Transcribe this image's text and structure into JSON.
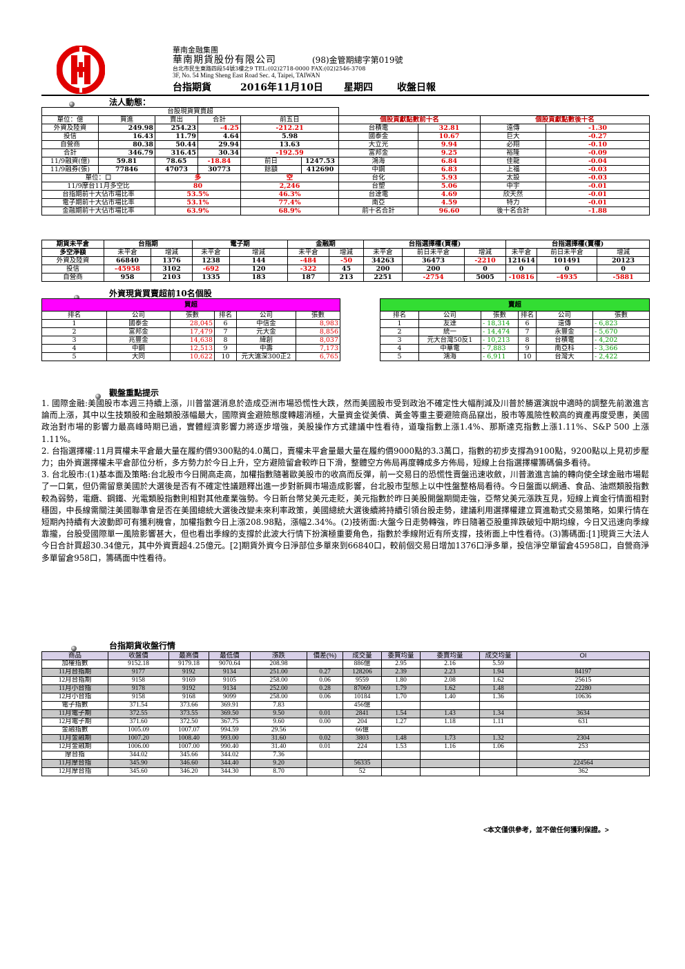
{
  "header": {
    "group": "華南金融集團",
    "company": "華南期貨股份有限公司",
    "license": "(98)金管期總字第019號",
    "address_cn": "台北市民生東路四段54號3樓之9 TEL:(02)2718-0000 FAX:(02)2546-3708",
    "address_en": "3F, No. 54 Ming Sheng East Road Sec. 4, Taipei, TAIWAN",
    "product": "台指期貨",
    "date": "2016年11月10日",
    "weekday": "星期四",
    "report": "收盤日報",
    "logo_color": "#e00000"
  },
  "section1": {
    "title": "法人動態："
  },
  "inst": {
    "caption": "台股現貨買賣超",
    "head": [
      "單位：億",
      "買進",
      "賣出",
      "合計",
      "前五日"
    ],
    "rows": [
      [
        "外資及陸資",
        "249.98",
        "254.23",
        "-4.25",
        "-212.21"
      ],
      [
        "投信",
        "16.43",
        "11.79",
        "4.64",
        "5.98"
      ],
      [
        "自營商",
        "80.38",
        "50.44",
        "29.94",
        "13.63"
      ],
      [
        "合計",
        "346.79",
        "316.45",
        "30.34",
        "-192.59"
      ]
    ],
    "margin_rows": [
      [
        "11/9融資(億)",
        "59.81",
        "78.65",
        "-18.84",
        "前日",
        "1247.53"
      ],
      [
        "11/9融券(張)",
        "77846",
        "47073",
        "30773",
        "餘額",
        "412690"
      ]
    ],
    "unit_row": [
      "單位：口",
      "多",
      "空"
    ],
    "stat_rows": [
      [
        "11/9摩台11月多空比",
        "80",
        "2,246"
      ],
      [
        "台指期前十大佔市場比率",
        "53.5%",
        "46.3%"
      ],
      [
        "電子期前十大佔市場比率",
        "53.1%",
        "77.4%"
      ],
      [
        "金融期前十大佔市場比率",
        "63.9%",
        "68.9%"
      ]
    ]
  },
  "contrib": {
    "top_title": "個股貢獻點數前十名",
    "bottom_title": "個股貢獻點數後十名",
    "rows": [
      [
        "台積電",
        "32.81",
        "遠傳",
        "-1.30"
      ],
      [
        "國泰金",
        "10.67",
        "巨大",
        "-0.27"
      ],
      [
        "大立光",
        "9.94",
        "必翔",
        "-0.10"
      ],
      [
        "富邦金",
        "9.25",
        "裕隆",
        "-0.09"
      ],
      [
        "鴻海",
        "6.84",
        "佳龍",
        "-0.04"
      ],
      [
        "中鋼",
        "6.83",
        "上福",
        "-0.03"
      ],
      [
        "台化",
        "5.93",
        "太設",
        "-0.03"
      ],
      [
        "台塑",
        "5.06",
        "中宇",
        "-0.01"
      ],
      [
        "台達電",
        "4.69",
        "欣天然",
        "-0.01"
      ],
      [
        "南亞",
        "4.59",
        "特力",
        "-0.01"
      ]
    ],
    "sum_row": [
      "前十名合計",
      "96.60",
      "後十名合計",
      "-1.88"
    ]
  },
  "oi": {
    "groups": [
      "期貨未平倉",
      "台指期",
      "電子期",
      "金融期",
      "台指選擇權(買權)",
      "台指選擇權(賣權)"
    ],
    "sub": [
      "多空淨額",
      "未平倉",
      "增減",
      "未平倉",
      "增減",
      "未平倉",
      "增減",
      "未平倉",
      "前日未平倉",
      "增減",
      "未平倉",
      "前日未平倉",
      "增減"
    ],
    "rows": [
      [
        "外資及陸資",
        "66840",
        "1376",
        "1238",
        "144",
        "-484",
        "-50",
        "34263",
        "36473",
        "-2210",
        "121614",
        "101491",
        "20123"
      ],
      [
        "投信",
        "-45958",
        "3102",
        "-692",
        "120",
        "-322",
        "45",
        "200",
        "200",
        "0",
        "0",
        "0",
        "0"
      ],
      [
        "自營商",
        "958",
        "2103",
        "1335",
        "183",
        "187",
        "213",
        "2251",
        "-2754",
        "5005",
        "-10816",
        "-4935",
        "-5881"
      ]
    ]
  },
  "section2": {
    "title": "外資現貨買賣超前10名個股"
  },
  "buy": {
    "title": "買超",
    "head": [
      "排名",
      "公司",
      "張數",
      "排名",
      "公司",
      "張數"
    ],
    "rows": [
      [
        "1",
        "國泰金",
        "28,045",
        "6",
        "中信金",
        "8,983"
      ],
      [
        "2",
        "富邦金",
        "17,479",
        "7",
        "元大金",
        "8,856"
      ],
      [
        "3",
        "兆豐金",
        "14,638",
        "8",
        "緯創",
        "8,037"
      ],
      [
        "4",
        "中鋼",
        "12,513",
        "9",
        "中壽",
        "7,173"
      ],
      [
        "5",
        "大同",
        "10,622",
        "10",
        "元大滬深300正2",
        "6,765"
      ]
    ]
  },
  "sell": {
    "title": "賣超",
    "head": [
      "排名",
      "公司",
      "張數",
      "排名",
      "公司",
      "張數"
    ],
    "rows": [
      [
        "1",
        "友達",
        "- 18,314",
        "6",
        "遠傳",
        "- 6,823"
      ],
      [
        "2",
        "統一",
        "- 14,474",
        "7",
        "永豐金",
        "- 5,670"
      ],
      [
        "3",
        "元大台灣50反1",
        "- 10,213",
        "8",
        "台積電",
        "- 4,202"
      ],
      [
        "4",
        "中華電",
        "- 7,883",
        "9",
        "南亞科",
        "- 3,366"
      ],
      [
        "5",
        "鴻海",
        "- 6,911",
        "10",
        "台灣大",
        "- 2,422"
      ]
    ]
  },
  "section3": {
    "title": "觀盤重點提示"
  },
  "points": [
    "1. 國際金融:美國股市本週三持續上漲，川普當選消息於造成亞洲市場恐慌性大跌，然而美國股市受到政治不確定性大幅削減及川普於勝選演說中適時的調整先前激進言論而上漲，其中以生技類股和金融類股漲幅最大，國際資金避險態度轉趨消極，大量資金從美債、黃金等重主要避險商品竄出，股市等風險性較高的資產再度受惠，美國政治對市場的影響力最高峰時期已過，實體經濟影響力將逐步增強，美股操作方式建議中性看待，道瓊指數上漲1.4%、那斯達克指數上漲1.11%、S&P 500 上漲1.11%。",
    "2. 台指選擇權:11月買權未平倉最大量在履約價9300點的4.0萬口，賣權未平倉量最大量在履約價9000點的3.3萬口，指數的初步支撐為9100點，9200點以上見初步壓力；由外資選擇權未平倉部位分析，多方勢力於今日上升，空方避險留倉較昨日下滑，整體空方佈局再度轉成多方佈局，短線上台指選擇權籌碼偏多看待。",
    "3. 台北股市:(1)基本面及策略:台北股市今日開高走高，加權指數隨著歐美股市的收高而反彈，前一交易日的恐慌性賣盤迅速收斂，川普激進言論的轉向使全球金融市場鬆了一口氣，但仍需留意美國於大選後是否有不確定性議題釋出進一步對新興市場造成影響，台北股市型態上以中性盤整格局看待。今日盤面以網通、食品、油燃類股指數較為弱勢，電纜、鋼鐵、光電類股指數則相對其他產業強勢。今日新台幣兌美元走貶，美元指數於昨日美股開盤期間走強，亞幣兌美元漲跌互見，短線上資金行情面相對穩固，中長線需關注美國聯準會是否在美國總統大選後改變未來利率政策，美國總統大選後續將持續引領台股走勢，建議利用選擇權建立買進勒式交易策略，如果行情在短期內持續有大波動即可有獲利機會，加權指數今日上漲208.98點，漲幅2.34%。(2)技術面:大盤今日走勢轉強，昨日隨著亞股重摔跌破短中期均線，今日又迅速向季線靠攏，台股受國際單一風險影響甚大，但也看出季線的支撐於此波大行情下扮演極重要角色，指數於季線附近有所支撐，技術面上中性看待。(3)籌碼面:[1]現貨三大法人今日合計買超30.34億元，其中外資賣超4.25億元。[2]期貨外資今日淨部位多單來到66840口，較前個交易日增加1376口淨多單，投信淨空單留倉45958口，自營商淨多單留倉958口，籌碼面中性看待。"
  ],
  "section4": {
    "title": "台指期貨收盤行情"
  },
  "futures": {
    "head": [
      "商品",
      "收盤價",
      "最高價",
      "最低價",
      "漲跌",
      "價差(%)",
      "成交量",
      "委買均量",
      "委賣均量",
      "成交均量",
      "OI"
    ],
    "rows": [
      [
        "加權指數",
        "9152.18",
        "9179.18",
        "9070.64",
        "208.98",
        "",
        "886億",
        "2.95",
        "2.16",
        "5.59",
        ""
      ],
      [
        "11月台指期",
        "9177",
        "9192",
        "9134",
        "251.00",
        "0.27",
        "128206",
        "2.39",
        "2.23",
        "1.94",
        "84197"
      ],
      [
        "12月台指期",
        "9158",
        "9169",
        "9105",
        "258.00",
        "0.06",
        "9559",
        "1.80",
        "2.08",
        "1.62",
        "25615"
      ],
      [
        "11月小台指",
        "9178",
        "9192",
        "9134",
        "252.00",
        "0.28",
        "87069",
        "1.79",
        "1.62",
        "1.48",
        "22280"
      ],
      [
        "12月小台指",
        "9158",
        "9168",
        "9099",
        "258.00",
        "0.06",
        "10184",
        "1.70",
        "1.40",
        "1.36",
        "10636"
      ],
      [
        "電子指數",
        "371.54",
        "373.66",
        "369.91",
        "7.83",
        "",
        "456億",
        "",
        "",
        "",
        ""
      ],
      [
        "11月電子期",
        "372.55",
        "373.55",
        "369.50",
        "9.50",
        "0.01",
        "2841",
        "1.54",
        "1.43",
        "1.34",
        "3634"
      ],
      [
        "12月電子期",
        "371.60",
        "372.50",
        "367.75",
        "9.60",
        "0.00",
        "204",
        "1.27",
        "1.18",
        "1.11",
        "631"
      ],
      [
        "金融指數",
        "1005.09",
        "1007.07",
        "994.59",
        "29.56",
        "",
        "66億",
        "",
        "",
        "",
        ""
      ],
      [
        "11月金融期",
        "1007.20",
        "1008.40",
        "993.00",
        "31.60",
        "0.02",
        "3803",
        "1.48",
        "1.73",
        "1.32",
        "2304"
      ],
      [
        "12月金融期",
        "1006.00",
        "1007.00",
        "990.40",
        "31.40",
        "0.01",
        "224",
        "1.53",
        "1.16",
        "1.06",
        "253"
      ],
      [
        "摩台指",
        "344.02",
        "345.66",
        "344.02",
        "7.36",
        "",
        "",
        "",
        "",
        "",
        ""
      ],
      [
        "11月摩台指",
        "345.90",
        "346.60",
        "344.40",
        "9.20",
        "",
        "56335",
        "",
        "",
        "",
        "224564"
      ],
      [
        "12月摩台指",
        "345.60",
        "346.20",
        "344.30",
        "8.70",
        "",
        "52",
        "",
        "",
        "",
        "362"
      ]
    ],
    "gray_rows": [
      1,
      3,
      6,
      9,
      12
    ]
  },
  "footer": {
    "disclaimer": "<本文僅供參考，並不做任何獲利保證。>"
  }
}
